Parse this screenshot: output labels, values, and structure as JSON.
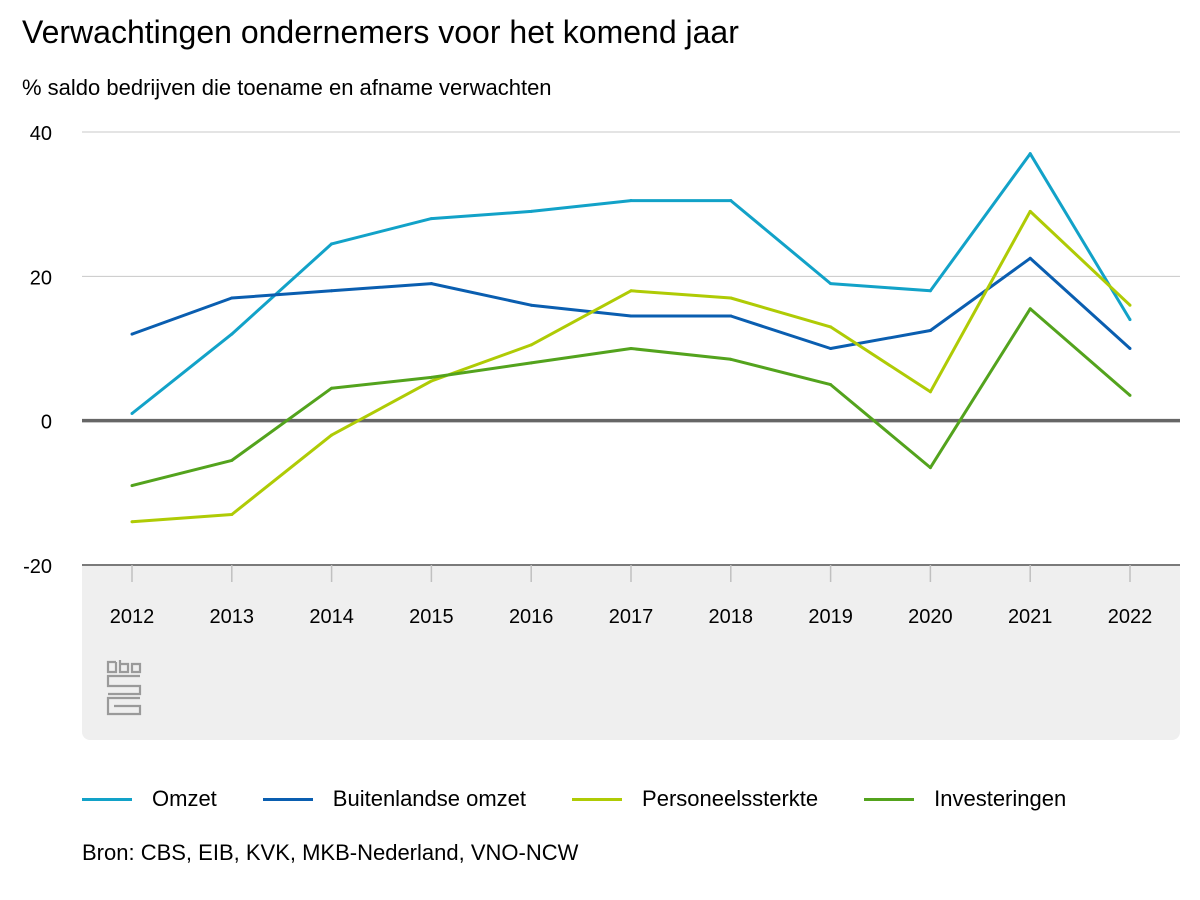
{
  "title": "Verwachtingen ondernemers voor het komend jaar",
  "subtitle": "% saldo bedrijven die toename en afname verwachten",
  "source": "Bron: CBS, EIB, KVK, MKB-Nederland, VNO-NCW",
  "logo": "cbs",
  "chart_data": {
    "type": "line",
    "title": "Verwachtingen ondernemers voor het komend jaar",
    "ylabel": "% saldo bedrijven die toename en afname verwachten",
    "xlabel": "",
    "x": [
      "2012",
      "2013",
      "2014",
      "2015",
      "2016",
      "2017",
      "2018",
      "2019",
      "2020",
      "2021",
      "2022"
    ],
    "ylim": [
      -20,
      40
    ],
    "yticks": [
      -20,
      0,
      20,
      40
    ],
    "grid": true,
    "legend_position": "bottom",
    "series": [
      {
        "name": "Omzet",
        "color": "#12a2c8",
        "values": [
          1,
          12,
          24.5,
          28,
          29,
          30.5,
          30.5,
          19,
          18,
          37,
          14
        ]
      },
      {
        "name": "Buitenlandse omzet",
        "color": "#0a5eb0",
        "values": [
          12,
          17,
          18,
          19,
          16,
          14.5,
          14.5,
          10,
          12.5,
          22.5,
          10
        ]
      },
      {
        "name": "Personeelssterkte",
        "color": "#afcb05",
        "values": [
          -14,
          -13,
          -2,
          5.5,
          10.5,
          18,
          17,
          13,
          4,
          29,
          16
        ]
      },
      {
        "name": "Investeringen",
        "color": "#53a31d",
        "values": [
          -9,
          -5.5,
          4.5,
          6,
          8,
          10,
          8.5,
          5,
          -6.5,
          15.5,
          3.5
        ]
      }
    ]
  }
}
